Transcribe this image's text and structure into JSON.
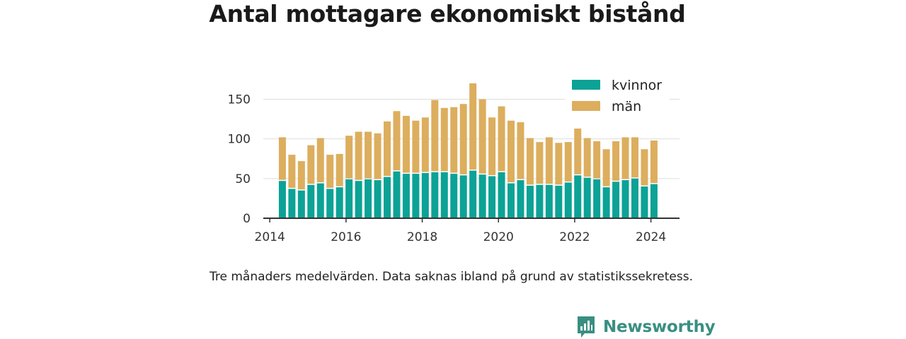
{
  "colors": {
    "women": "#0ca296",
    "men": "#dcae5e",
    "brand": "#3a8f82",
    "grid": "#dddddd",
    "axis": "#333333"
  },
  "chart_data": {
    "type": "bar",
    "stacked": true,
    "title": "Antal mottagare ekonomiskt bistånd",
    "xlabel": "",
    "ylabel": "",
    "ylim": [
      0,
      170
    ],
    "yticks": [
      0,
      50,
      100,
      150
    ],
    "xticks": [
      2014,
      2016,
      2018,
      2020,
      2022,
      2024
    ],
    "xlim": [
      2013.83,
      2024.75
    ],
    "grid": true,
    "legend_position": "top-right",
    "x": [
      2014.33,
      2014.58,
      2014.83,
      2015.08,
      2015.33,
      2015.58,
      2015.83,
      2016.08,
      2016.33,
      2016.58,
      2016.83,
      2017.08,
      2017.33,
      2017.58,
      2017.83,
      2018.08,
      2018.33,
      2018.58,
      2018.83,
      2019.08,
      2019.33,
      2019.58,
      2019.83,
      2020.08,
      2020.33,
      2020.58,
      2020.83,
      2021.08,
      2021.33,
      2021.58,
      2021.83,
      2022.08,
      2022.33,
      2022.58,
      2022.83,
      2023.08,
      2023.33,
      2023.58,
      2023.83,
      2024.08
    ],
    "series": [
      {
        "name": "kvinnor",
        "values": [
          47,
          37,
          35,
          42,
          44,
          37,
          39,
          49,
          47,
          49,
          48,
          52,
          59,
          56,
          56,
          57,
          58,
          58,
          56,
          54,
          60,
          55,
          53,
          58,
          44,
          48,
          41,
          42,
          42,
          41,
          45,
          54,
          51,
          49,
          39,
          46,
          48,
          50,
          40,
          43
        ]
      },
      {
        "name": "män",
        "values": [
          55,
          43,
          37,
          50,
          57,
          43,
          42,
          55,
          62,
          60,
          59,
          70,
          76,
          73,
          67,
          70,
          91,
          81,
          84,
          90,
          110,
          95,
          74,
          83,
          79,
          73,
          60,
          54,
          60,
          54,
          51,
          59,
          50,
          48,
          48,
          51,
          54,
          52,
          47,
          55
        ]
      }
    ]
  },
  "note": "Tre månaders medelvärden. Data saknas ibland på grund av statistikssekretess.",
  "brand": {
    "name": "Newsworthy",
    "icon": "newsworthy-logo-icon"
  }
}
